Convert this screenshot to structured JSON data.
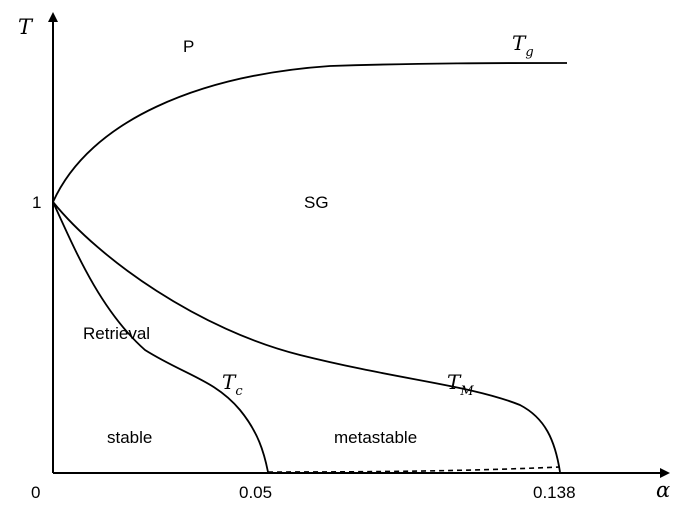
{
  "chart_data": {
    "type": "line",
    "title": "",
    "xlabel": "α",
    "ylabel": "T",
    "x_ticks": [
      "0",
      "0.05",
      "0.138"
    ],
    "y_ticks": [
      "1"
    ],
    "grid": false,
    "regions": {
      "paramagnetic": "P",
      "spin_glass": "SG",
      "retrieval": "Retrieval",
      "stable": "stable",
      "metastable": "metastable"
    },
    "series": [
      {
        "name": "T_g",
        "label_main": "T",
        "label_sub": "g",
        "color": "#000000",
        "style": "solid",
        "points": [
          [
            0,
            1.0
          ],
          [
            0.01,
            1.19
          ],
          [
            0.02,
            1.27
          ],
          [
            0.04,
            1.35
          ],
          [
            0.06,
            1.4
          ],
          [
            0.08,
            1.43
          ],
          [
            0.1,
            1.45
          ],
          [
            0.12,
            1.46
          ],
          [
            0.14,
            1.47
          ]
        ]
      },
      {
        "name": "T_M",
        "label_main": "T",
        "label_sub": "M",
        "color": "#000000",
        "style": "solid",
        "points": [
          [
            0,
            1.0
          ],
          [
            0.02,
            0.82
          ],
          [
            0.04,
            0.67
          ],
          [
            0.06,
            0.53
          ],
          [
            0.08,
            0.42
          ],
          [
            0.1,
            0.36
          ],
          [
            0.12,
            0.29
          ],
          [
            0.13,
            0.2
          ],
          [
            0.138,
            0.0
          ]
        ]
      },
      {
        "name": "T_c",
        "label_main": "T",
        "label_sub": "c",
        "color": "#000000",
        "style": "solid",
        "points": [
          [
            0,
            1.0
          ],
          [
            0.01,
            0.74
          ],
          [
            0.02,
            0.53
          ],
          [
            0.03,
            0.4
          ],
          [
            0.04,
            0.27
          ],
          [
            0.05,
            0.0
          ]
        ]
      },
      {
        "name": "T=0 boundary",
        "color": "#000000",
        "style": "dashed",
        "points": [
          [
            0.05,
            0.0
          ],
          [
            0.138,
            0.012
          ]
        ]
      }
    ]
  }
}
